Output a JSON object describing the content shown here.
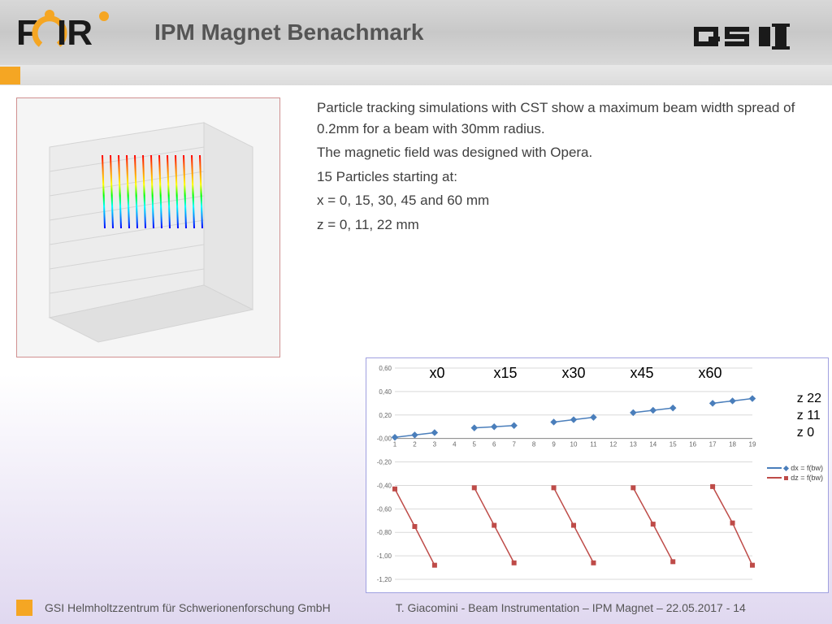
{
  "header": {
    "title": "IPM Magnet Benachmark",
    "fair_logo_color_orange": "#f5a623",
    "fair_logo_color_black": "#1a1a1a",
    "gsi_color": "#1a1a1a"
  },
  "text": {
    "p1": "Particle tracking simulations with CST show a maximum beam width spread of 0.2mm for a beam with 30mm radius.",
    "p2": "The magnetic field was designed with Opera.",
    "p3": "15 Particles starting at:",
    "p4": "x = 0, 15, 30, 45 and 60 mm",
    "p5": "z = 0, 11, 22 mm"
  },
  "sim_image": {
    "background": "#e8e8e8",
    "rainbow_colors": [
      "#ff0000",
      "#ff8000",
      "#ffff00",
      "#00ff00",
      "#00ffff",
      "#0080ff",
      "#0000ff"
    ]
  },
  "chart": {
    "x_group_labels": [
      "x0",
      "x15",
      "x30",
      "x45",
      "x60"
    ],
    "z_labels": [
      "z 22",
      "z 11",
      "z  0"
    ],
    "legend": [
      {
        "label": "dx = f(bw)",
        "color": "#4a7ebb",
        "marker": "diamond"
      },
      {
        "label": "dz = f(bw)",
        "color": "#be4b48",
        "marker": "square"
      }
    ],
    "ylim": [
      -1.2,
      0.6
    ],
    "ytick_step": 0.2,
    "xrange": [
      1,
      19
    ],
    "blue_color": "#4a7ebb",
    "red_color": "#be4b48",
    "grid_color": "#d9d9d9",
    "axis_color": "#888",
    "background": "#ffffff",
    "blue_series": {
      "groups": [
        [
          [
            1,
            0.01
          ],
          [
            2,
            0.03
          ],
          [
            3,
            0.05
          ]
        ],
        [
          [
            5,
            0.09
          ],
          [
            6,
            0.1
          ],
          [
            7,
            0.11
          ]
        ],
        [
          [
            9,
            0.14
          ],
          [
            10,
            0.16
          ],
          [
            11,
            0.18
          ]
        ],
        [
          [
            13,
            0.22
          ],
          [
            14,
            0.24
          ],
          [
            15,
            0.26
          ]
        ],
        [
          [
            17,
            0.3
          ],
          [
            18,
            0.32
          ],
          [
            19,
            0.34
          ]
        ]
      ]
    },
    "red_series": {
      "groups": [
        [
          [
            1,
            -0.43
          ],
          [
            2,
            -0.75
          ],
          [
            3,
            -1.08
          ]
        ],
        [
          [
            5,
            -0.42
          ],
          [
            6,
            -0.74
          ],
          [
            7,
            -1.06
          ]
        ],
        [
          [
            9,
            -0.42
          ],
          [
            10,
            -0.74
          ],
          [
            11,
            -1.06
          ]
        ],
        [
          [
            13,
            -0.42
          ],
          [
            14,
            -0.73
          ],
          [
            15,
            -1.05
          ]
        ],
        [
          [
            17,
            -0.41
          ],
          [
            18,
            -0.72
          ],
          [
            19,
            -1.08
          ]
        ]
      ]
    }
  },
  "footer": {
    "left": "GSI Helmholtzzentrum für Schwerionenforschung GmbH",
    "right": "T. Giacomini - Beam Instrumentation – IPM Magnet – 22.05.2017 - ",
    "page": "14"
  }
}
